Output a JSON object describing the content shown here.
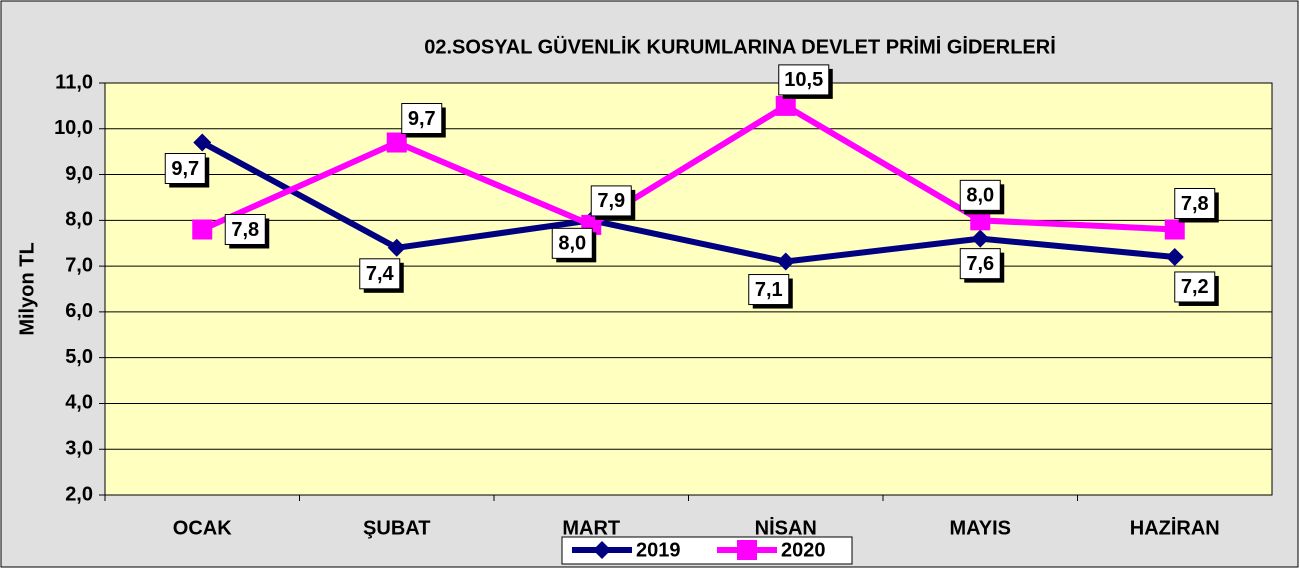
{
  "chart_data": {
    "type": "line",
    "title": "02.SOSYAL GÜVENLİK KURUMLARINA DEVLET PRİMİ GİDERLERİ",
    "y_label": "Milyon TL",
    "categories": [
      "OCAK",
      "ŞUBAT",
      "MART",
      "NİSAN",
      "MAYIS",
      "HAZİRAN"
    ],
    "series": [
      {
        "name": "2019",
        "color": "#000080",
        "values": [
          9.7,
          7.4,
          8.0,
          7.1,
          7.6,
          7.2
        ],
        "value_labels": [
          "9,7",
          "7,4",
          "8,0",
          "7,1",
          "7,6",
          "7,2"
        ]
      },
      {
        "name": "2020",
        "color": "#ff00ff",
        "values": [
          7.8,
          9.7,
          7.9,
          10.5,
          8.0,
          7.8
        ],
        "value_labels": [
          "7,8",
          "9,7",
          "7,9",
          "10,5",
          "8,0",
          "7,8"
        ]
      }
    ],
    "ylim": [
      2,
      11
    ],
    "yticks": [
      {
        "value": 2,
        "label": "2,0"
      },
      {
        "value": 3,
        "label": "3,0"
      },
      {
        "value": 4,
        "label": "4,0"
      },
      {
        "value": 5,
        "label": "5,0"
      },
      {
        "value": 6,
        "label": "6,0"
      },
      {
        "value": 7,
        "label": "7,0"
      },
      {
        "value": 8,
        "label": "8,0"
      },
      {
        "value": 9,
        "label": "9,0"
      },
      {
        "value": 10,
        "label": "10,0"
      },
      {
        "value": 11,
        "label": "11,0"
      }
    ],
    "grid": true,
    "legend": "bottom"
  }
}
